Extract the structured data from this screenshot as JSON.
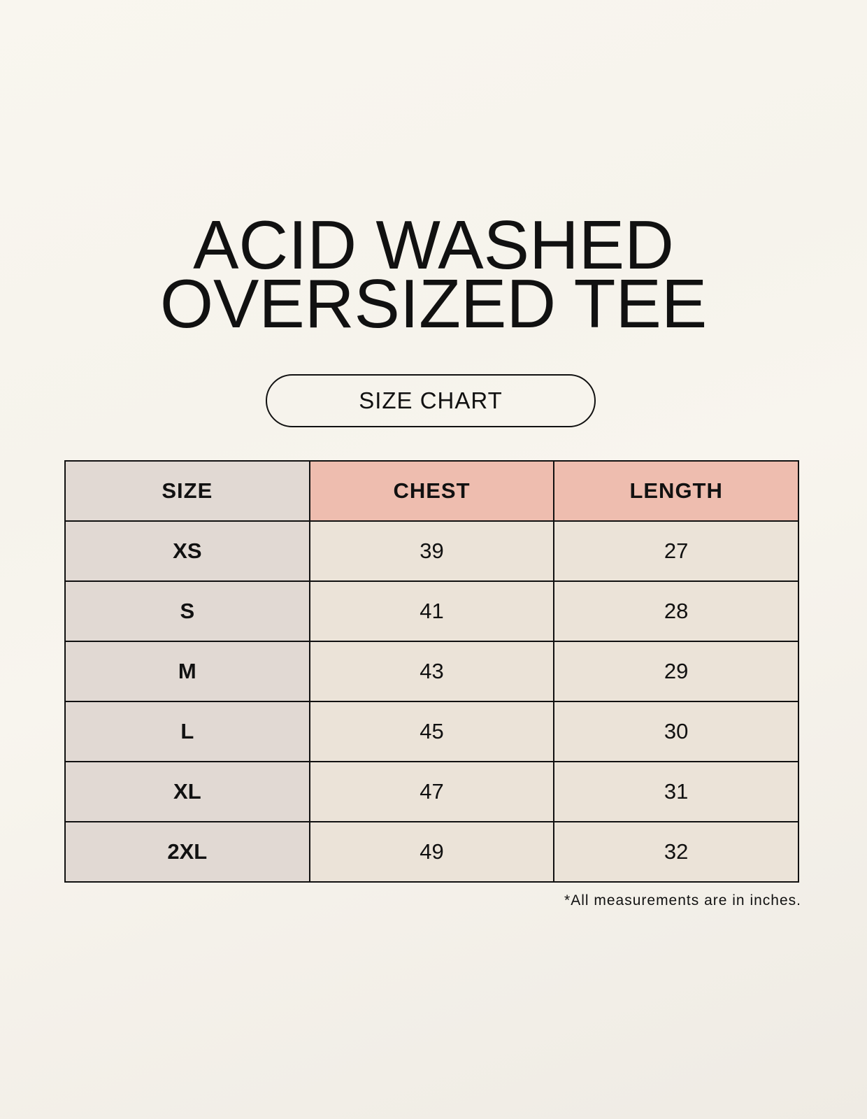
{
  "title": {
    "line1": "ACID WASHED",
    "line2": "OVERSIZED TEE"
  },
  "subtitle": "SIZE CHART",
  "table": {
    "headers": [
      "SIZE",
      "CHEST",
      "LENGTH"
    ],
    "rows": [
      {
        "size": "XS",
        "chest": "39",
        "length": "27"
      },
      {
        "size": "S",
        "chest": "41",
        "length": "28"
      },
      {
        "size": "M",
        "chest": "43",
        "length": "29"
      },
      {
        "size": "L",
        "chest": "45",
        "length": "30"
      },
      {
        "size": "XL",
        "chest": "47",
        "length": "31"
      },
      {
        "size": "2XL",
        "chest": "49",
        "length": "32"
      }
    ]
  },
  "footnote": "*All measurements are in inches.",
  "colors": {
    "size_column": "#e1d9d3",
    "measure_header": "#eebdaf",
    "measure_cells": "#ebe3d8"
  }
}
